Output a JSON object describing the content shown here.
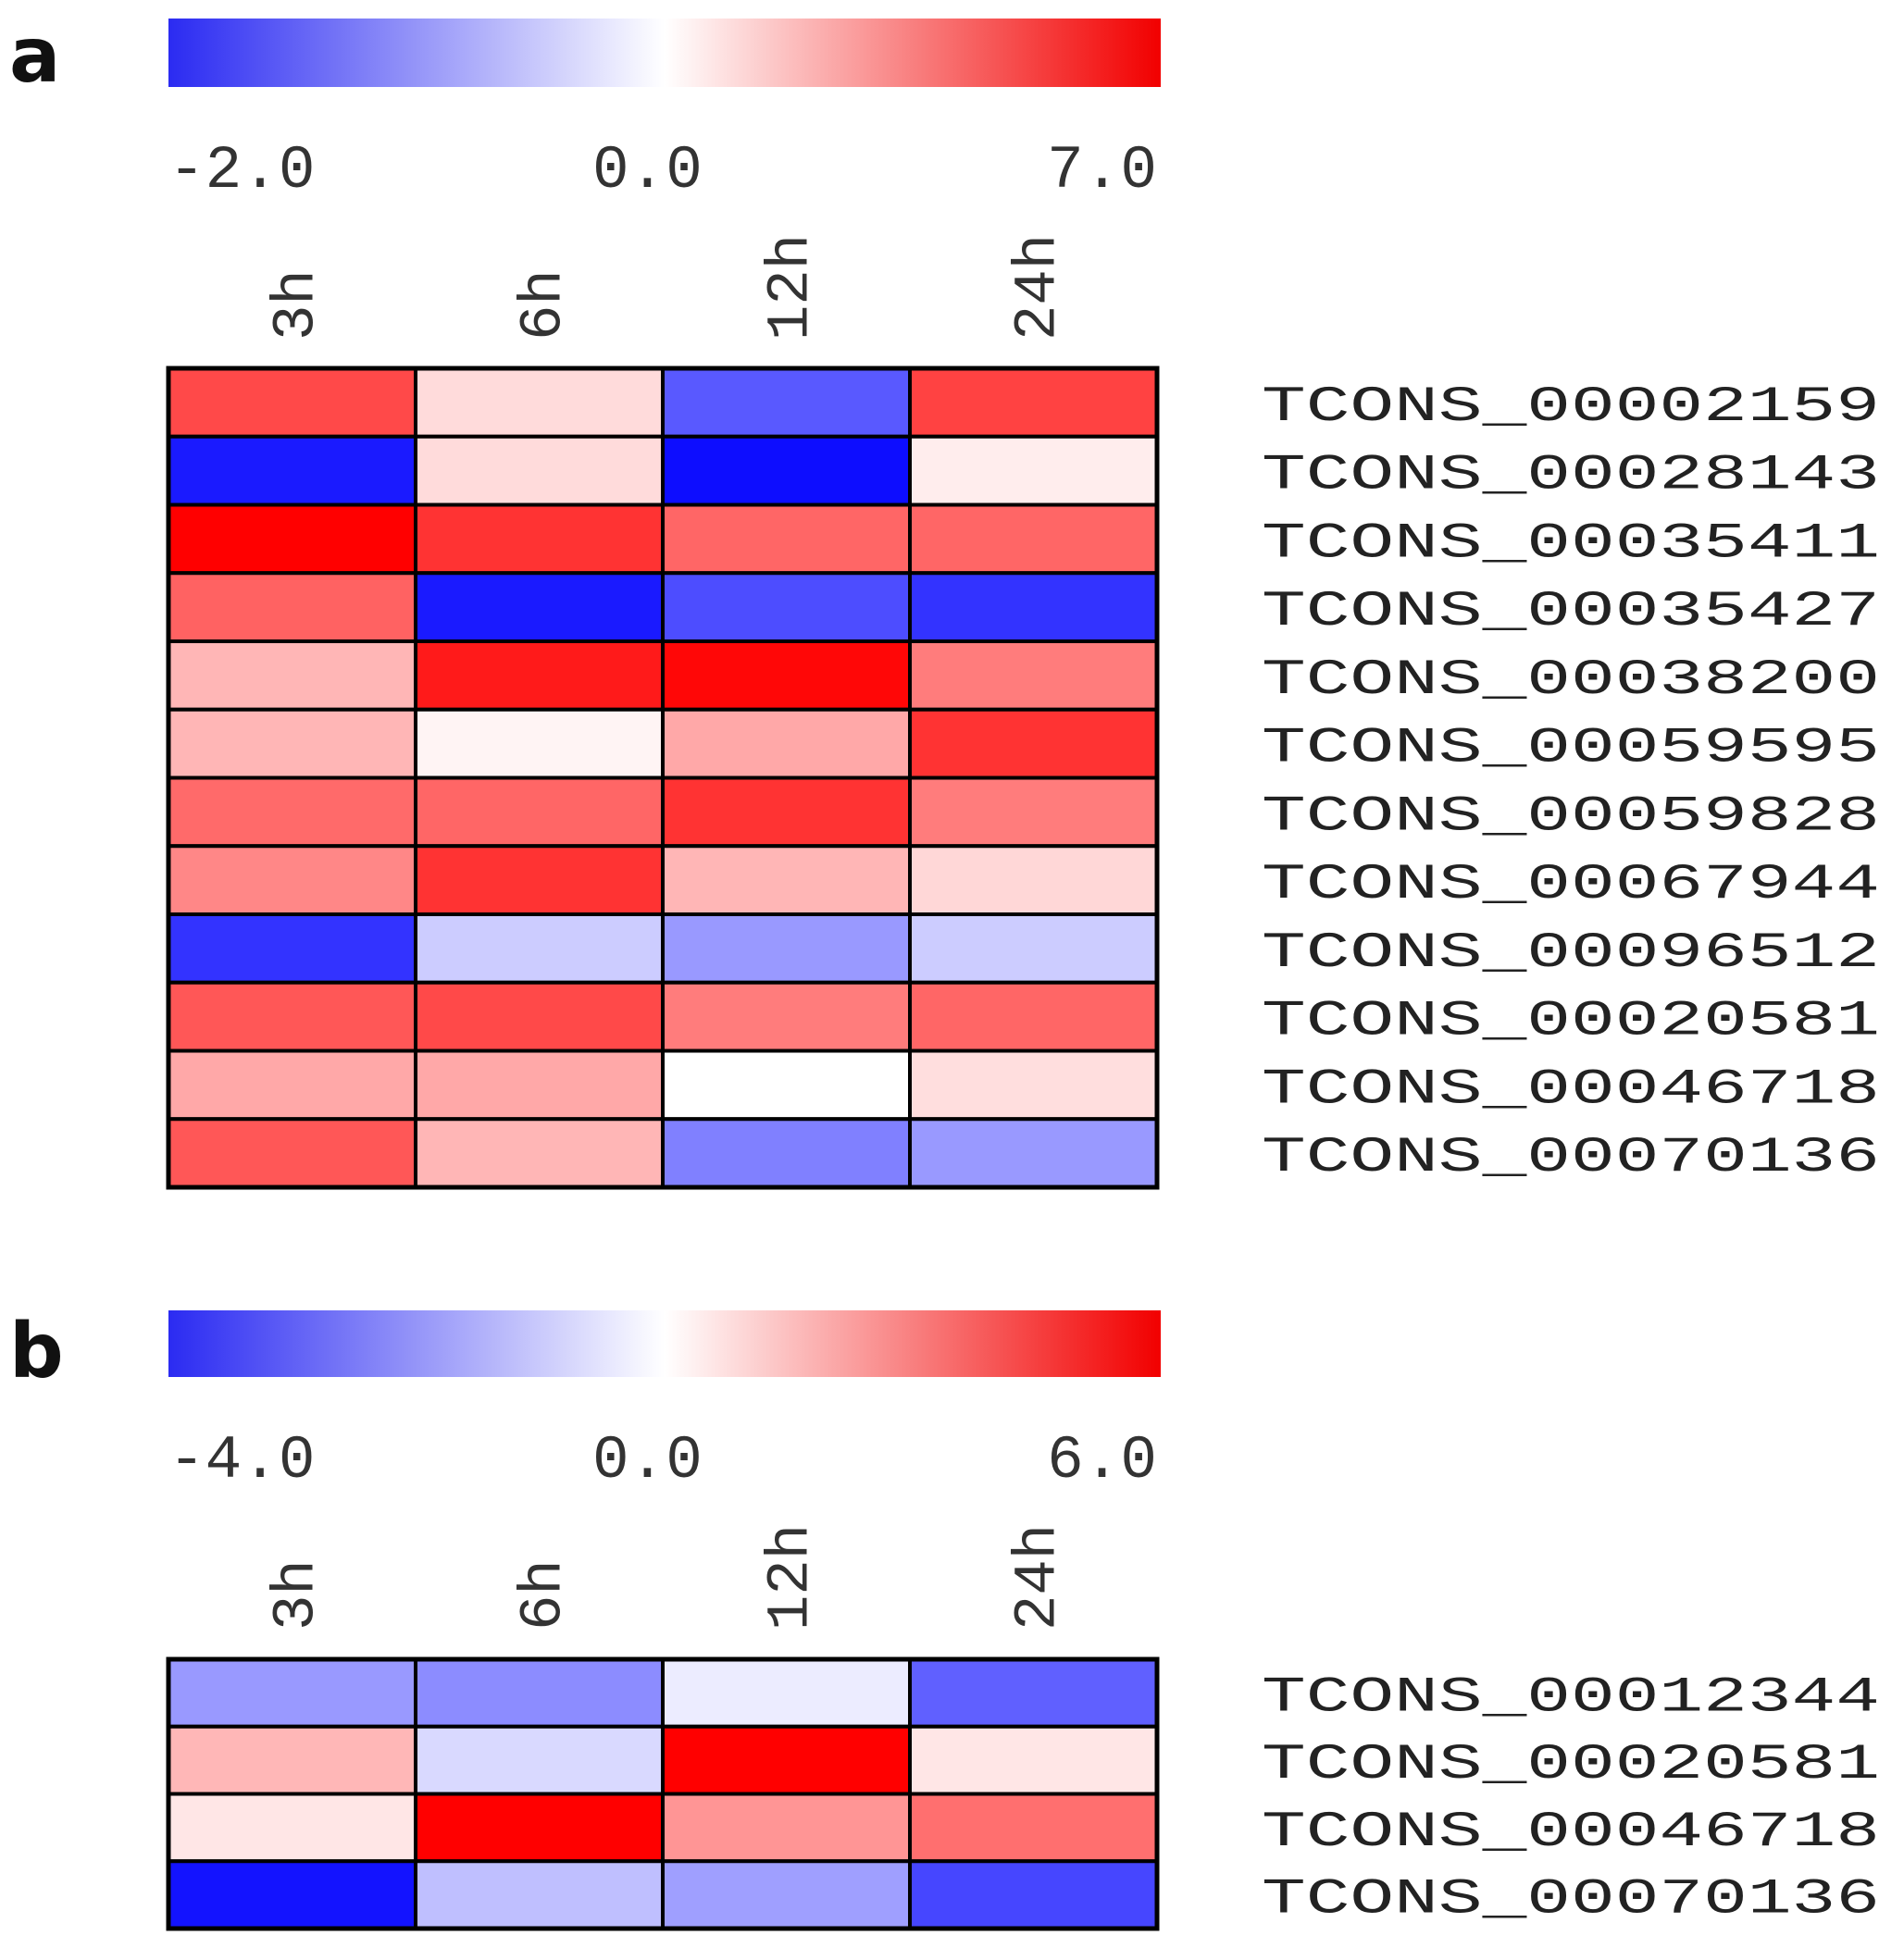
{
  "chart_data": [
    {
      "type": "heatmap",
      "panel": "a",
      "colorbar": {
        "min": -2.0,
        "mid": 0.0,
        "max": 7.0,
        "labels": [
          "-2.0",
          "0.0",
          "7.0"
        ]
      },
      "columns": [
        "3h",
        "6h",
        "12h",
        "24h"
      ],
      "rows": [
        "TCONS_00002159",
        "TCONS_00028143",
        "TCONS_00035411",
        "TCONS_00035427",
        "TCONS_00038200",
        "TCONS_00059595",
        "TCONS_00059828",
        "TCONS_00067944",
        "TCONS_00096512",
        "TCONS_00020581",
        "TCONS_00046718",
        "TCONS_00070136"
      ],
      "values": [
        [
          5.0,
          1.0,
          -1.3,
          5.2
        ],
        [
          -1.8,
          1.0,
          -1.9,
          0.5
        ],
        [
          7.0,
          5.6,
          4.2,
          4.2
        ],
        [
          4.3,
          -1.8,
          -1.4,
          -1.6
        ],
        [
          2.0,
          6.3,
          6.8,
          3.6
        ],
        [
          2.0,
          0.3,
          2.4,
          5.6
        ],
        [
          4.1,
          4.2,
          5.6,
          3.6
        ],
        [
          3.3,
          5.6,
          2.0,
          1.1
        ],
        [
          -1.6,
          -0.4,
          -0.8,
          -0.4
        ],
        [
          4.6,
          5.0,
          3.6,
          4.2
        ],
        [
          2.4,
          2.4,
          0.0,
          0.9
        ],
        [
          4.6,
          2.0,
          -1.0,
          -0.8
        ]
      ]
    },
    {
      "type": "heatmap",
      "panel": "b",
      "colorbar": {
        "min": -4.0,
        "mid": 0.0,
        "max": 6.0,
        "labels": [
          "-4.0",
          "0.0",
          "6.0"
        ]
      },
      "columns": [
        "3h",
        "6h",
        "12h",
        "24h"
      ],
      "rows": [
        "TCONS_00012344",
        "TCONS_00020581",
        "TCONS_00046718",
        "TCONS_00070136"
      ],
      "values": [
        [
          -1.6,
          -1.8,
          -0.3,
          -2.5
        ],
        [
          1.7,
          -0.6,
          6.0,
          0.6
        ],
        [
          0.6,
          6.0,
          2.5,
          3.4
        ],
        [
          -3.7,
          -1.0,
          -1.5,
          -2.9
        ]
      ]
    }
  ],
  "colors": {
    "low": "#0000ff",
    "mid": "#ffffff",
    "high": "#ff0000"
  }
}
